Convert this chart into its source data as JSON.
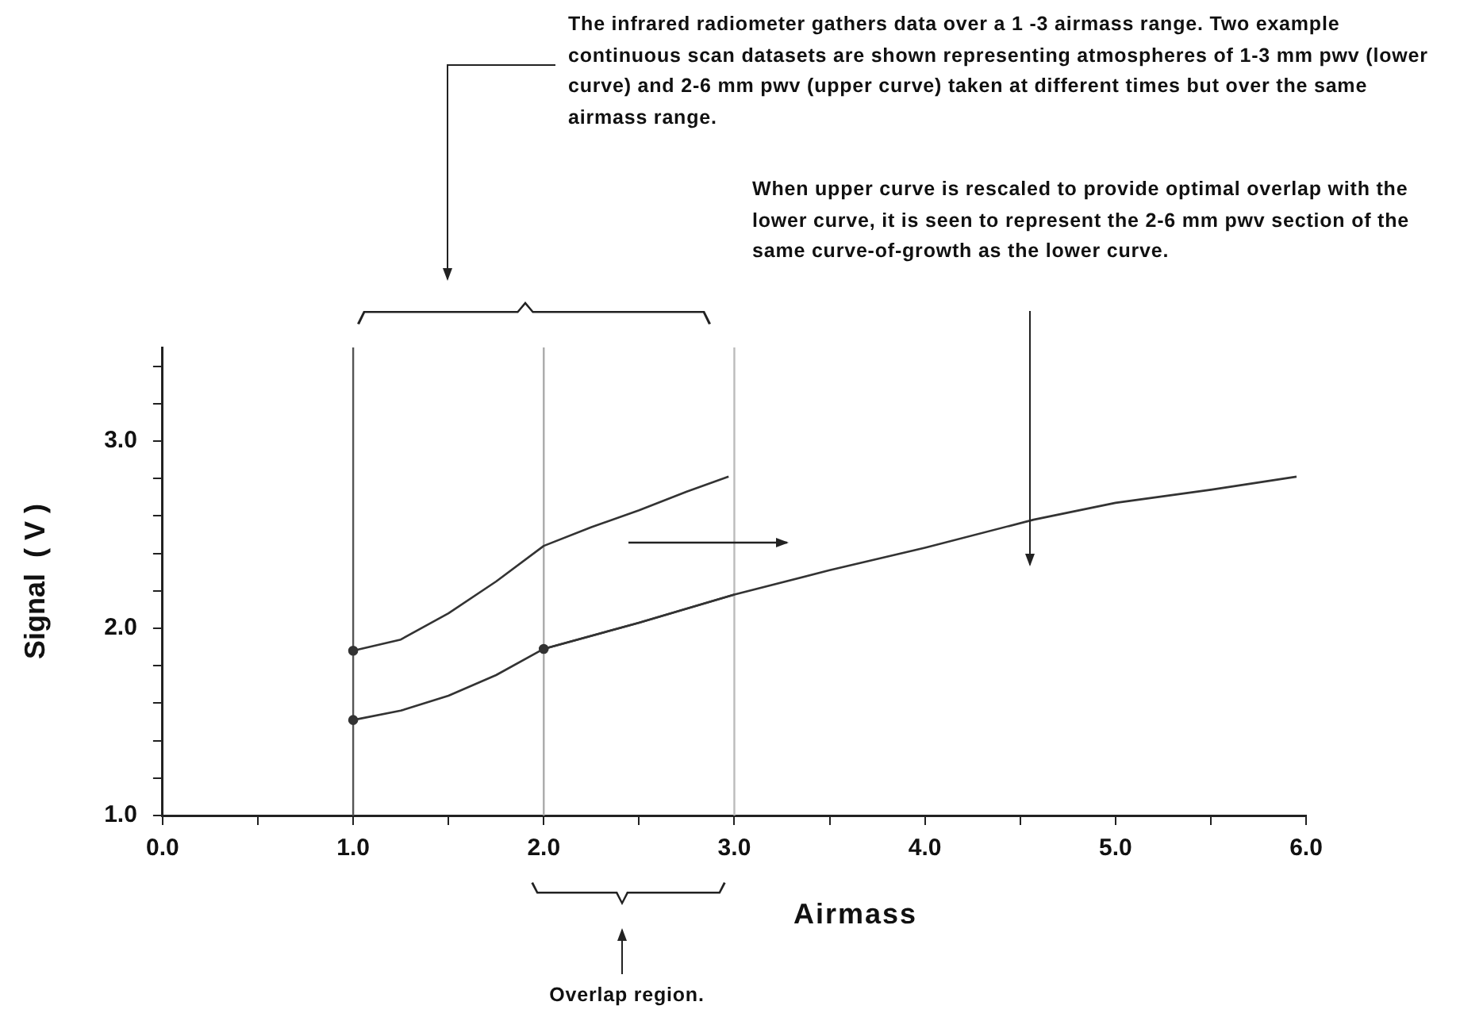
{
  "chart_data": {
    "type": "line",
    "xlabel": "Airmass",
    "ylabel": "Signal  ( V )",
    "xlim": [
      0,
      6
    ],
    "ylim": [
      1,
      3.5
    ],
    "xticks": [
      {
        "value": 0,
        "label": "0.0"
      },
      {
        "value": 0.5,
        "label": null
      },
      {
        "value": 1,
        "label": "1.0"
      },
      {
        "value": 1.5,
        "label": null
      },
      {
        "value": 2,
        "label": "2.0"
      },
      {
        "value": 2.5,
        "label": null
      },
      {
        "value": 3,
        "label": "3.0"
      },
      {
        "value": 3.5,
        "label": null
      },
      {
        "value": 4,
        "label": "4.0"
      },
      {
        "value": 4.5,
        "label": null
      },
      {
        "value": 5,
        "label": "5.0"
      },
      {
        "value": 5.5,
        "label": null
      },
      {
        "value": 6,
        "label": "6.0"
      }
    ],
    "yticks": [
      {
        "value": 1,
        "label": "1.0"
      },
      {
        "value": 1.2,
        "label": null
      },
      {
        "value": 1.4,
        "label": null
      },
      {
        "value": 1.6,
        "label": null
      },
      {
        "value": 1.8,
        "label": null
      },
      {
        "value": 2,
        "label": "2.0"
      },
      {
        "value": 2.2,
        "label": null
      },
      {
        "value": 2.4,
        "label": null
      },
      {
        "value": 2.6,
        "label": null
      },
      {
        "value": 2.8,
        "label": null
      },
      {
        "value": 3,
        "label": "3.0"
      },
      {
        "value": 3.2,
        "label": null
      },
      {
        "value": 3.4,
        "label": null
      }
    ],
    "grid": false,
    "legend": false,
    "line_style": "solid",
    "series": [
      {
        "color": "#333333",
        "x": [
          1,
          1.25,
          1.5,
          1.75,
          2,
          2.5,
          3
        ],
        "values": [
          1.51,
          1.56,
          1.64,
          1.75,
          1.89,
          2.03,
          2.18
        ]
      },
      {
        "color": "#333333",
        "x": [
          1,
          1.25,
          1.5,
          1.75,
          2,
          2.25,
          2.5,
          2.75,
          2.97
        ],
        "values": [
          1.88,
          1.94,
          2.08,
          2.25,
          2.44,
          2.54,
          2.63,
          2.73,
          2.81
        ]
      },
      {
        "color": "#333333",
        "x": [
          2,
          2.5,
          3,
          3.5,
          4,
          4.57,
          5,
          5.5,
          5.95
        ],
        "values": [
          1.89,
          2.03,
          2.18,
          2.31,
          2.43,
          2.58,
          2.67,
          2.74,
          2.81
        ]
      }
    ],
    "ref_lines": [
      {
        "axis": "x",
        "value": 1,
        "color": "#555555"
      },
      {
        "axis": "x",
        "value": 2,
        "color": "#aaaaaa"
      },
      {
        "axis": "x",
        "value": 3,
        "color": "#bbbbbb"
      }
    ],
    "annotations": [
      "The infrared radiometer gathers data over a 1 -3 airmass range. Two example continuous scan datasets are shown representing atmospheres of 1-3 mm pwv  (lower curve)  and 2-6 mm pwv (upper curve) taken at different times but over the same airmass range.",
      "When upper curve is rescaled  to provide optimal overlap with the lower curve, it is seen to represent the 2-6 mm pwv section of the same curve-of-growth as the lower curve.",
      "Overlap region."
    ]
  }
}
